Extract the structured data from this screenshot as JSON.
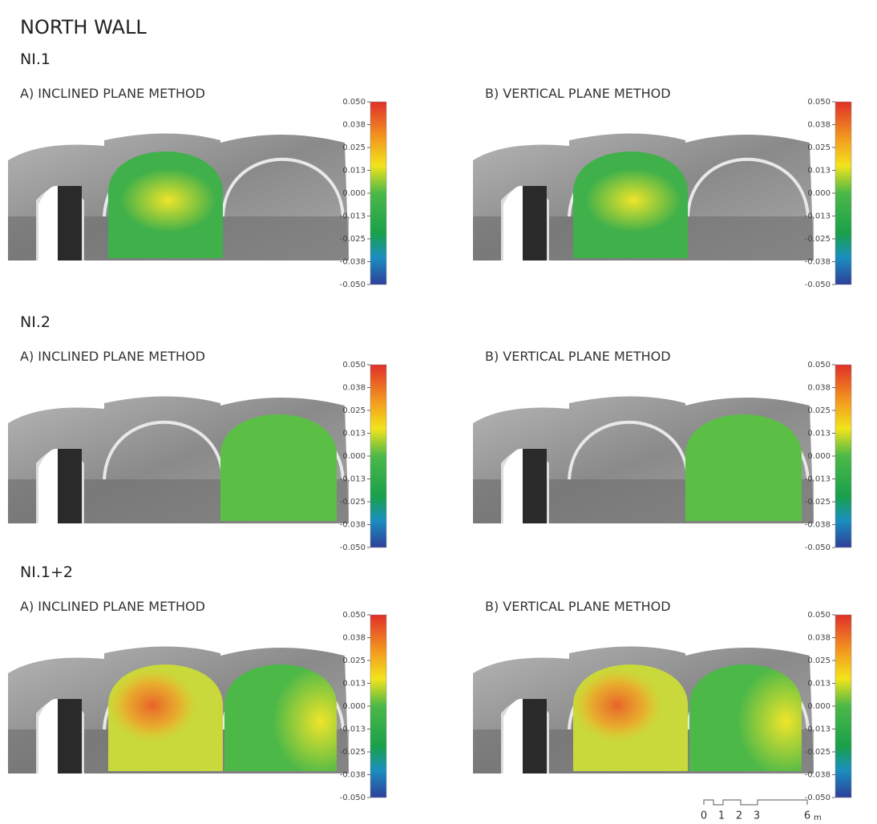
{
  "header": {
    "title": "NORTH WALL"
  },
  "sections": [
    {
      "label": "NI.1",
      "panels": [
        {
          "label": "A) INCLINED PLANE METHOD"
        },
        {
          "label": "B) VERTICAL PLANE METHOD"
        }
      ]
    },
    {
      "label": "NI.2",
      "panels": [
        {
          "label": "A) INCLINED PLANE METHOD"
        },
        {
          "label": "B) VERTICAL PLANE METHOD"
        }
      ]
    },
    {
      "label": "NI.1+2",
      "panels": [
        {
          "label": "A) INCLINED PLANE METHOD"
        },
        {
          "label": "B) VERTICAL PLANE METHOD"
        }
      ]
    }
  ],
  "colorbar": {
    "ticks": [
      "0.050",
      "0.038",
      "0.025",
      "0.013",
      "0.000",
      "-0.013",
      "-0.025",
      "-0.038",
      "-0.050"
    ]
  },
  "scale_bar": {
    "ticks": [
      "0",
      "1",
      "2",
      "3",
      "6"
    ],
    "unit": "m"
  }
}
